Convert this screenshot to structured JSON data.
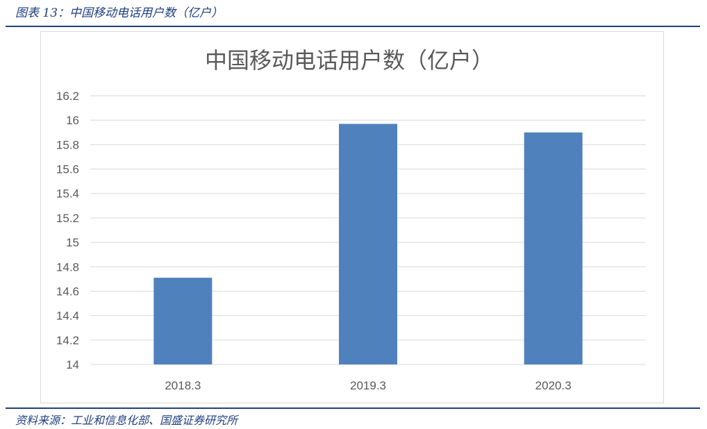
{
  "caption": "图表 13：中国移动电话用户数（亿户）",
  "source": "资料来源：工业和信息化部、国盛证券研究所",
  "colors": {
    "bar": "#4f81bd",
    "grid": "#d9d9d9",
    "text": "#595959",
    "accent": "#1f3f80"
  },
  "chart_data": {
    "type": "bar",
    "title": "中国移动电话用户数（亿户）",
    "categories": [
      "2018.3",
      "2019.3",
      "2020.3"
    ],
    "values": [
      14.71,
      15.97,
      15.9
    ],
    "ylim": [
      14,
      16.2
    ],
    "yticks": [
      "14",
      "14.2",
      "14.4",
      "14.6",
      "14.8",
      "15",
      "15.2",
      "15.4",
      "15.6",
      "15.8",
      "16",
      "16.2"
    ],
    "grid": true,
    "legend": "none"
  }
}
